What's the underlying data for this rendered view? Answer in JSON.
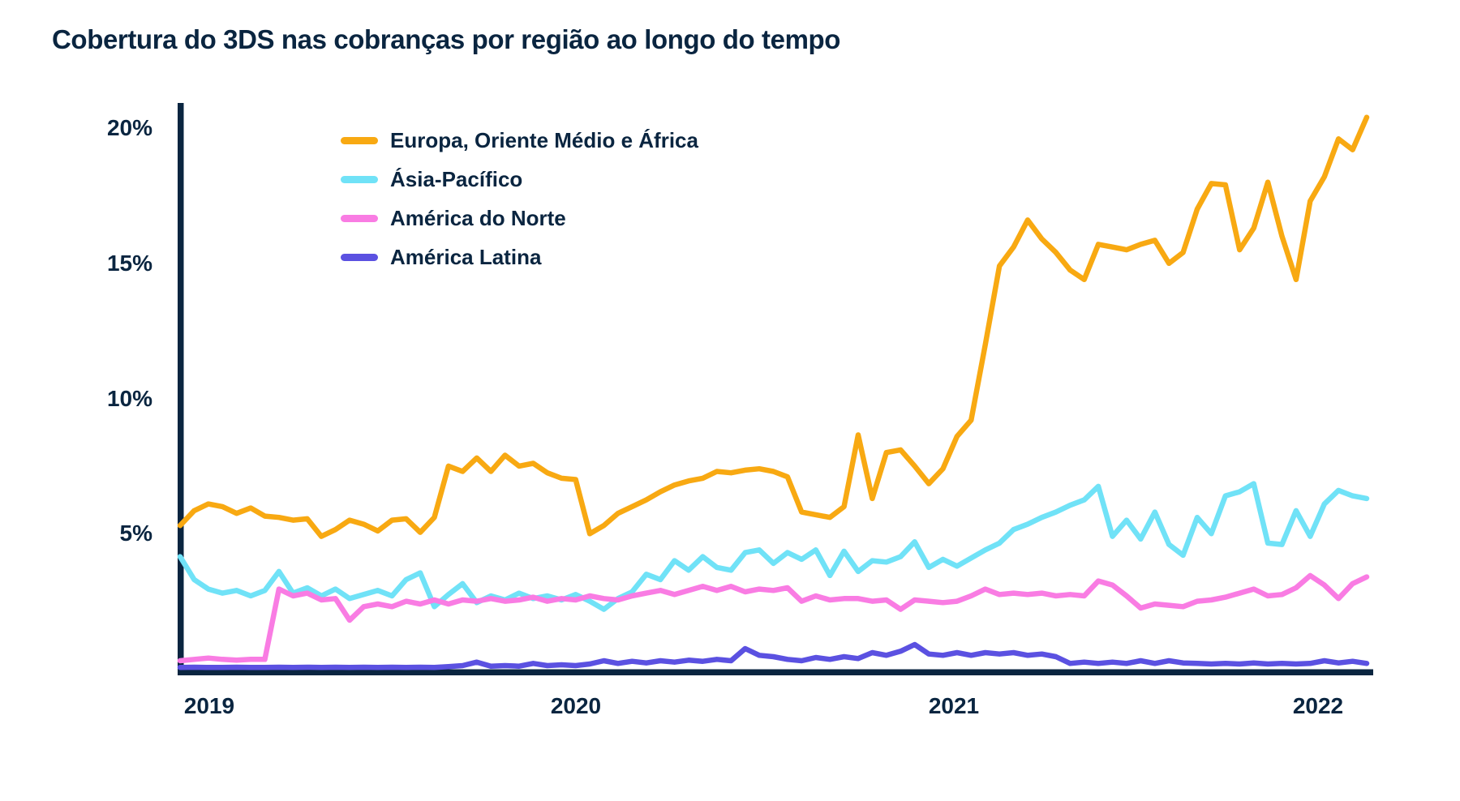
{
  "title": "Cobertura do 3DS nas cobranças por região ao longo do tempo",
  "colors": {
    "background": "#FFFFFF",
    "text": "#0A2540",
    "axis": "#0A2540",
    "emea": "#F8A912",
    "apac": "#70E2F7",
    "north_america": "#F97CE3",
    "latin_america": "#5B51E1"
  },
  "chart_data": {
    "type": "line",
    "title": "Cobertura do 3DS nas cobranças por região ao longo do tempo",
    "xlabel": "",
    "ylabel": "",
    "x_tick_labels": [
      "2019",
      "2020",
      "2021",
      "2022"
    ],
    "y_tick_labels": [
      "5%",
      "10%",
      "15%",
      "20%"
    ],
    "y_tick_values": [
      5,
      10,
      15,
      20
    ],
    "ylim": [
      0,
      20.5
    ],
    "x_note": "approximately biweekly samples from Dec 2018 to Mar 2022, percent of charges with 3DS",
    "grid": false,
    "legend_position": "top-left-inside",
    "series": [
      {
        "id": "emea",
        "name": "Europa, Oriente Médio e África",
        "color": "#F8A912",
        "values": [
          5.3,
          5.85,
          6.1,
          6.0,
          5.75,
          5.95,
          5.65,
          5.6,
          5.5,
          5.55,
          4.9,
          5.15,
          5.5,
          5.35,
          5.1,
          5.5,
          5.55,
          5.05,
          5.6,
          7.5,
          7.3,
          7.8,
          7.3,
          7.9,
          7.5,
          7.6,
          7.25,
          7.05,
          7.0,
          5.0,
          5.3,
          5.75,
          6.0,
          6.25,
          6.55,
          6.8,
          6.95,
          7.05,
          7.3,
          7.25,
          7.35,
          7.4,
          7.3,
          7.1,
          5.8,
          5.7,
          5.6,
          6.0,
          8.65,
          6.3,
          8.0,
          8.1,
          7.5,
          6.85,
          7.4,
          8.6,
          9.2,
          12.0,
          14.9,
          15.6,
          16.6,
          15.9,
          15.4,
          14.75,
          14.4,
          15.7,
          15.6,
          15.5,
          15.7,
          15.85,
          15.0,
          15.4,
          17.0,
          17.95,
          17.9,
          15.5,
          16.3,
          18.0,
          16.0,
          14.4,
          17.3,
          18.2,
          19.6,
          19.2,
          20.4
        ]
      },
      {
        "id": "apac",
        "name": "Ásia-Pacífico",
        "color": "#70E2F7",
        "values": [
          4.15,
          3.3,
          2.95,
          2.8,
          2.9,
          2.7,
          2.9,
          3.6,
          2.8,
          3.0,
          2.7,
          2.95,
          2.6,
          2.75,
          2.9,
          2.7,
          3.3,
          3.55,
          2.3,
          2.75,
          3.15,
          2.45,
          2.7,
          2.55,
          2.8,
          2.6,
          2.7,
          2.55,
          2.75,
          2.5,
          2.2,
          2.6,
          2.85,
          3.5,
          3.3,
          4.0,
          3.65,
          4.15,
          3.75,
          3.65,
          4.3,
          4.4,
          3.9,
          4.3,
          4.05,
          4.4,
          3.45,
          4.35,
          3.6,
          4.0,
          3.95,
          4.15,
          4.7,
          3.75,
          4.05,
          3.8,
          4.1,
          4.4,
          4.65,
          5.15,
          5.35,
          5.6,
          5.8,
          6.05,
          6.25,
          6.75,
          4.9,
          5.5,
          4.8,
          5.8,
          4.6,
          4.2,
          5.6,
          5.0,
          6.4,
          6.55,
          6.85,
          4.65,
          4.6,
          5.85,
          4.9,
          6.1,
          6.6,
          6.4,
          6.3
        ]
      },
      {
        "id": "north-america",
        "name": "América do Norte",
        "color": "#F97CE3",
        "values": [
          0.3,
          0.35,
          0.4,
          0.35,
          0.32,
          0.35,
          0.35,
          2.95,
          2.7,
          2.8,
          2.55,
          2.6,
          1.8,
          2.3,
          2.4,
          2.3,
          2.5,
          2.4,
          2.55,
          2.4,
          2.55,
          2.5,
          2.6,
          2.5,
          2.55,
          2.65,
          2.5,
          2.6,
          2.55,
          2.7,
          2.6,
          2.55,
          2.7,
          2.8,
          2.9,
          2.75,
          2.9,
          3.05,
          2.9,
          3.05,
          2.85,
          2.95,
          2.9,
          3.0,
          2.5,
          2.7,
          2.55,
          2.6,
          2.6,
          2.5,
          2.55,
          2.2,
          2.55,
          2.5,
          2.45,
          2.5,
          2.7,
          2.95,
          2.75,
          2.8,
          2.75,
          2.8,
          2.7,
          2.75,
          2.7,
          3.25,
          3.1,
          2.7,
          2.25,
          2.4,
          2.35,
          2.3,
          2.5,
          2.55,
          2.65,
          2.8,
          2.95,
          2.7,
          2.75,
          3.0,
          3.45,
          3.1,
          2.6,
          3.15,
          3.4
        ]
      },
      {
        "id": "latin-america",
        "name": "América Latina",
        "color": "#5B51E1",
        "values": [
          0.05,
          0.06,
          0.05,
          0.05,
          0.06,
          0.05,
          0.05,
          0.06,
          0.05,
          0.06,
          0.05,
          0.06,
          0.05,
          0.06,
          0.05,
          0.06,
          0.05,
          0.06,
          0.05,
          0.08,
          0.12,
          0.25,
          0.1,
          0.12,
          0.1,
          0.2,
          0.12,
          0.15,
          0.12,
          0.18,
          0.3,
          0.2,
          0.28,
          0.22,
          0.3,
          0.25,
          0.32,
          0.28,
          0.35,
          0.3,
          0.75,
          0.5,
          0.45,
          0.35,
          0.3,
          0.42,
          0.35,
          0.45,
          0.38,
          0.6,
          0.5,
          0.65,
          0.9,
          0.55,
          0.5,
          0.6,
          0.5,
          0.6,
          0.55,
          0.6,
          0.5,
          0.55,
          0.45,
          0.2,
          0.25,
          0.2,
          0.25,
          0.2,
          0.3,
          0.2,
          0.3,
          0.22,
          0.2,
          0.18,
          0.2,
          0.18,
          0.22,
          0.18,
          0.2,
          0.18,
          0.2,
          0.3,
          0.22,
          0.28,
          0.2
        ]
      }
    ]
  }
}
